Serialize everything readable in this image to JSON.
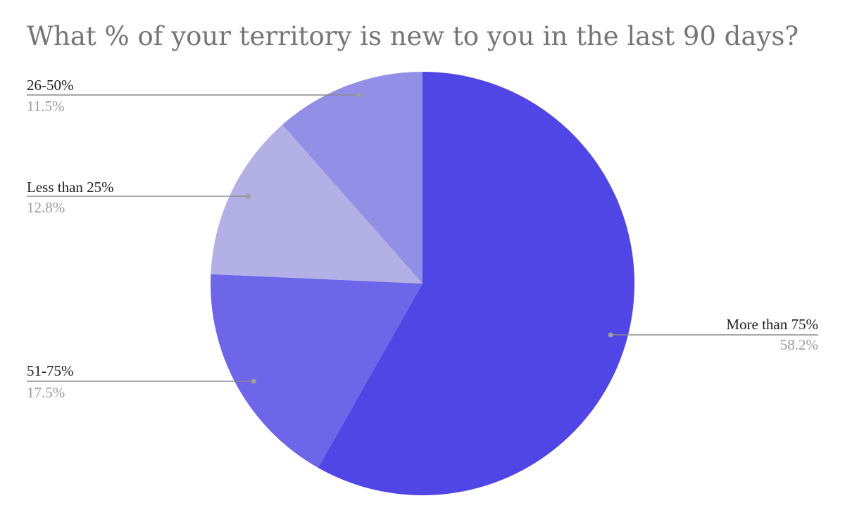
{
  "chart_data": {
    "type": "pie",
    "title": "What % of your territory is new to you in the last 90 days?",
    "slices": [
      {
        "label": "More than 75%",
        "value": 58.2,
        "display": "58.2%",
        "color": "#4f46e5"
      },
      {
        "label": "51-75%",
        "value": 17.5,
        "display": "17.5%",
        "color": "#6d66e8"
      },
      {
        "label": "Less than 25%",
        "value": 12.8,
        "display": "12.8%",
        "color": "#b2b0e4"
      },
      {
        "label": "26-50%",
        "value": 11.5,
        "display": "11.5%",
        "color": "#938ee6"
      }
    ],
    "start_angle_deg": 0,
    "direction": "clockwise",
    "legend": "none"
  }
}
